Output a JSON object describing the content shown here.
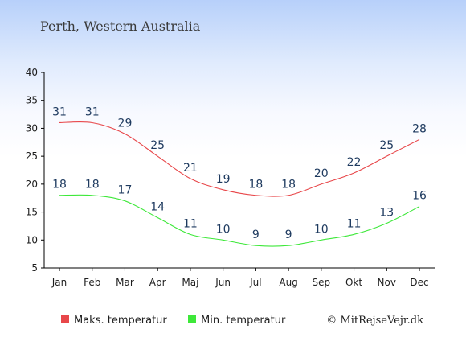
{
  "chart_data": {
    "type": "line",
    "title": "Perth, Western Australia",
    "xlabel": "",
    "ylabel": "",
    "categories": [
      "Jan",
      "Feb",
      "Mar",
      "Apr",
      "Maj",
      "Jun",
      "Jul",
      "Aug",
      "Sep",
      "Okt",
      "Nov",
      "Dec"
    ],
    "ylim": [
      5,
      40
    ],
    "yticks": [
      5,
      10,
      15,
      20,
      25,
      30,
      35,
      40
    ],
    "grid": false,
    "legend_position": "bottom",
    "series": [
      {
        "name": "Maks. temperatur",
        "color": "#e8474a",
        "values": [
          31,
          31,
          29,
          25,
          21,
          19,
          18,
          18,
          20,
          22,
          25,
          28
        ]
      },
      {
        "name": "Min. temperatur",
        "color": "#3ee83a",
        "values": [
          18,
          18,
          17,
          14,
          11,
          10,
          9,
          9,
          10,
          11,
          13,
          16
        ]
      }
    ]
  },
  "credit": "© MitRejseVejr.dk"
}
